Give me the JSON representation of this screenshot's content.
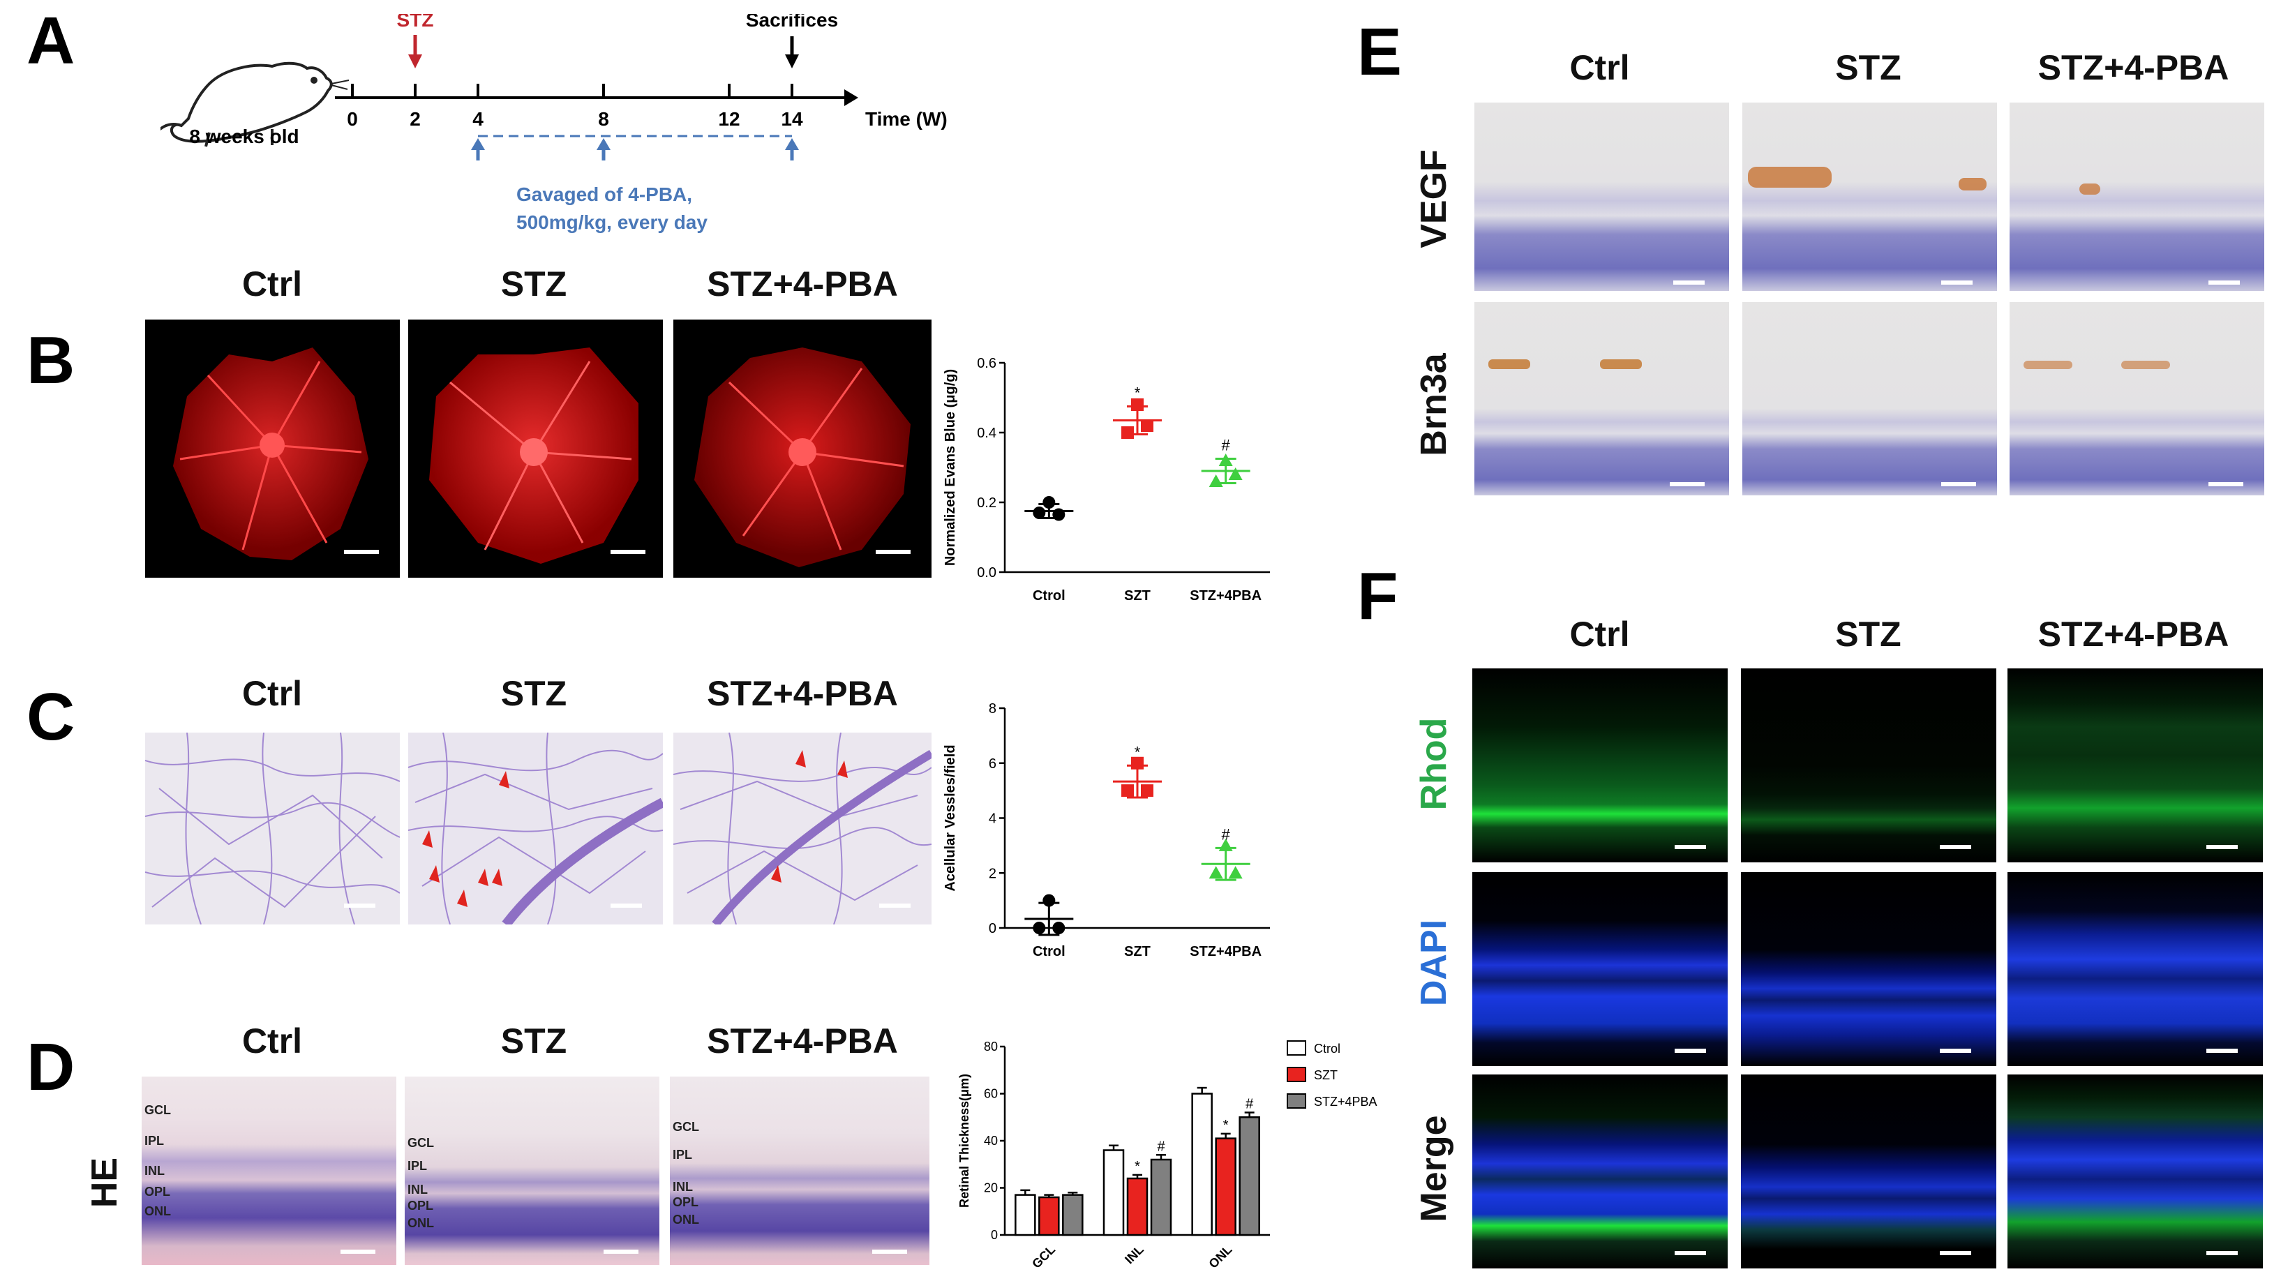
{
  "panels": {
    "A": {
      "letter": "A",
      "age_label": "8 weeks old",
      "stz_label": "STZ",
      "sacrifice_label": "Sacrifices",
      "ticks": [
        "0",
        "2",
        "4",
        "8",
        "12",
        "14"
      ],
      "axis_label": "Time (W)",
      "treatment_line1": "Gavaged of 4-PBA,",
      "treatment_line2": "500mg/kg, every day"
    },
    "B": {
      "letter": "B",
      "columns": [
        "Ctrl",
        "STZ",
        "STZ+4-PBA"
      ]
    },
    "C": {
      "letter": "C",
      "columns": [
        "Ctrl",
        "STZ",
        "STZ+4-PBA"
      ]
    },
    "D": {
      "letter": "D",
      "columns": [
        "Ctrl",
        "STZ",
        "STZ+4-PBA"
      ],
      "row_label": "HE",
      "layers_ctrl": [
        "GCL",
        "IPL",
        "INL",
        "OPL",
        "ONL"
      ],
      "layers_stz": [
        "GCL",
        "IPL",
        "INL",
        "OPL",
        "ONL"
      ],
      "layers_pba": [
        "GCL",
        "IPL",
        "INL",
        "OPL",
        "ONL"
      ]
    },
    "E": {
      "letter": "E",
      "columns": [
        "Ctrl",
        "STZ",
        "STZ+4-PBA"
      ],
      "rows": [
        "VEGF",
        "Brn3a"
      ]
    },
    "F": {
      "letter": "F",
      "columns": [
        "Ctrl",
        "STZ",
        "STZ+4-PBA"
      ],
      "rows": [
        "Rhod",
        "DAPI",
        "Merge"
      ],
      "row_colors": [
        "#2aa84a",
        "#2a6fd6",
        "#111111"
      ]
    }
  },
  "chart_data": [
    {
      "id": "B-chart",
      "type": "scatter",
      "categories": [
        "Ctrol",
        "SZT",
        "STZ+4PBA"
      ],
      "ylabel": "Normalized Evans Blue (μg/g)",
      "ylim": [
        0.0,
        0.6
      ],
      "yticks": [
        "0.0",
        "0.2",
        "0.4",
        "0.6"
      ],
      "series": [
        {
          "points": [
            0.2,
            0.17,
            0.165
          ],
          "mean": 0.175,
          "sd": 0.02,
          "color": "#000000",
          "marker": "circle",
          "sig": ""
        },
        {
          "points": [
            0.48,
            0.4,
            0.42
          ],
          "mean": 0.435,
          "sd": 0.04,
          "color": "#e8231f",
          "marker": "square",
          "sig": "*"
        },
        {
          "points": [
            0.32,
            0.26,
            0.28
          ],
          "mean": 0.29,
          "sd": 0.035,
          "color": "#3fcf3f",
          "marker": "triangle",
          "sig": "#"
        }
      ]
    },
    {
      "id": "C-chart",
      "type": "scatter",
      "categories": [
        "Ctrol",
        "SZT",
        "STZ+4PBA"
      ],
      "ylabel": "Acellular Vessles/field",
      "ylim": [
        0,
        8
      ],
      "yticks": [
        "0",
        "2",
        "4",
        "6",
        "8"
      ],
      "series": [
        {
          "points": [
            1.0,
            0.0,
            0.0
          ],
          "mean": 0.33,
          "sd": 0.58,
          "color": "#000000",
          "marker": "circle",
          "sig": ""
        },
        {
          "points": [
            6.0,
            5.0,
            5.0
          ],
          "mean": 5.33,
          "sd": 0.58,
          "color": "#e8231f",
          "marker": "square",
          "sig": "*"
        },
        {
          "points": [
            3.0,
            2.0,
            2.0
          ],
          "mean": 2.33,
          "sd": 0.58,
          "color": "#3fcf3f",
          "marker": "triangle",
          "sig": "#"
        }
      ]
    },
    {
      "id": "D-chart",
      "type": "bar",
      "categories": [
        "GCL",
        "INL",
        "ONL"
      ],
      "ylabel": "Retinal Thickness(μm)",
      "ylim": [
        0,
        80
      ],
      "yticks": [
        "0",
        "20",
        "40",
        "60",
        "80"
      ],
      "legend": [
        "Ctrol",
        "SZT",
        "STZ+4PBA"
      ],
      "legend_position": "top-right",
      "series": [
        {
          "name": "Ctrol",
          "values": [
            17,
            36,
            60
          ],
          "err": [
            2,
            2,
            2.5
          ],
          "color": "#ffffff",
          "sig": [
            "",
            "",
            ""
          ]
        },
        {
          "name": "SZT",
          "values": [
            16,
            24,
            41
          ],
          "err": [
            1,
            1.5,
            2
          ],
          "color": "#e8231f",
          "sig": [
            "",
            "*",
            "*"
          ]
        },
        {
          "name": "STZ+4PBA",
          "values": [
            17,
            32,
            50
          ],
          "err": [
            1,
            2,
            2
          ],
          "color": "#808080",
          "sig": [
            "",
            "#",
            "#"
          ]
        }
      ]
    }
  ],
  "colors": {
    "stz_arrow": "#c0262d",
    "treatment_text": "#4a78b8",
    "arrow_black": "#000000"
  }
}
